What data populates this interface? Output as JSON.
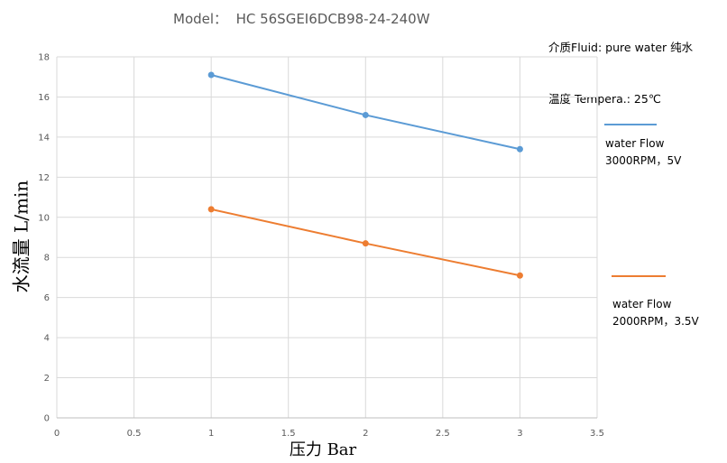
{
  "chart_data": {
    "type": "line",
    "title": "Model：  HC 56SGEI6DCB98-24-240W",
    "medium_note": [
      "介质Fluid: pure water 纯水",
      "温度 Tempera.: 25℃"
    ],
    "xlabel": "压力  Bar",
    "ylabel": "水流量 L/min",
    "xlim": [
      0,
      3.5
    ],
    "ylim": [
      0,
      18
    ],
    "xticks": [
      0,
      0.5,
      1,
      1.5,
      2,
      2.5,
      3,
      3.5
    ],
    "yticks": [
      0,
      2,
      4,
      6,
      8,
      10,
      12,
      14,
      16,
      18
    ],
    "grid": true,
    "legend_position": "right",
    "series": [
      {
        "name": "water Flow\n3000RPM，5V",
        "color": "#5b9bd5",
        "x": [
          1,
          2,
          3
        ],
        "values": [
          17.1,
          15.1,
          13.4
        ]
      },
      {
        "name": "water Flow\n2000RPM，3.5V",
        "color": "#ed7d31",
        "x": [
          1,
          2,
          3
        ],
        "values": [
          10.4,
          8.7,
          7.1
        ]
      }
    ]
  }
}
